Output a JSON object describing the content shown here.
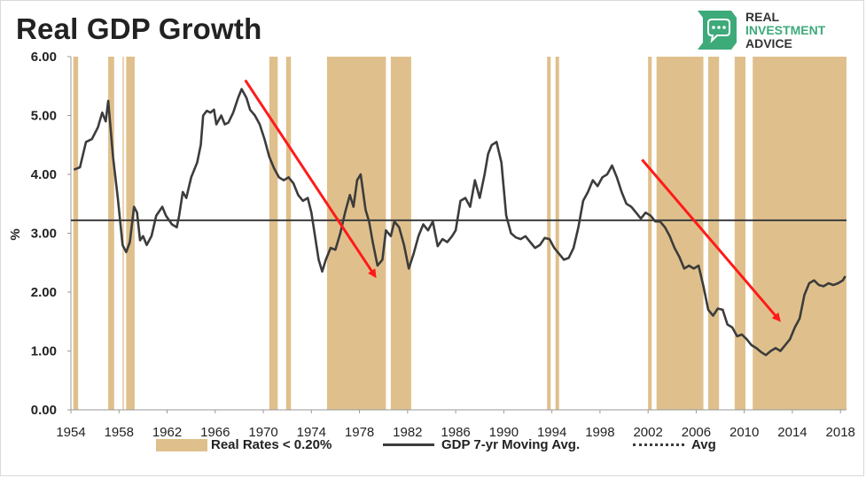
{
  "title": "Real GDP Growth",
  "brand": {
    "line1": "REAL",
    "line2": "INVESTMENT",
    "line3": "ADVICE",
    "color": "#3daa7a"
  },
  "chart_data": {
    "type": "line",
    "title": "Real GDP Growth",
    "ylabel": "%",
    "xlabel": "",
    "xlim": [
      1954.0,
      2018.5
    ],
    "ylim": [
      0,
      6
    ],
    "y_ticks": [
      "0.00",
      "1.00",
      "2.00",
      "3.00",
      "4.00",
      "5.00",
      "6.00"
    ],
    "x_ticks": [
      "1954",
      "1958",
      "1962",
      "1966",
      "1970",
      "1974",
      "1978",
      "1982",
      "1986",
      "1990",
      "1994",
      "1998",
      "2002",
      "2006",
      "2010",
      "2014",
      "2018"
    ],
    "series": [
      {
        "name": "GDP 7-yr Moving Avg.",
        "color": "#3c3c3c",
        "points": [
          [
            1954.25,
            4.08
          ],
          [
            1954.75,
            4.12
          ],
          [
            1955.25,
            4.55
          ],
          [
            1955.75,
            4.6
          ],
          [
            1956.25,
            4.8
          ],
          [
            1956.6,
            5.05
          ],
          [
            1956.9,
            4.9
          ],
          [
            1957.1,
            5.25
          ],
          [
            1957.5,
            4.3
          ],
          [
            1957.9,
            3.6
          ],
          [
            1958.3,
            2.8
          ],
          [
            1958.6,
            2.68
          ],
          [
            1958.9,
            2.85
          ],
          [
            1959.25,
            3.45
          ],
          [
            1959.5,
            3.35
          ],
          [
            1959.75,
            2.88
          ],
          [
            1960.0,
            2.95
          ],
          [
            1960.3,
            2.8
          ],
          [
            1960.7,
            2.95
          ],
          [
            1961.1,
            3.3
          ],
          [
            1961.6,
            3.45
          ],
          [
            1961.9,
            3.3
          ],
          [
            1962.4,
            3.15
          ],
          [
            1962.8,
            3.1
          ],
          [
            1963.0,
            3.3
          ],
          [
            1963.3,
            3.7
          ],
          [
            1963.6,
            3.6
          ],
          [
            1964.0,
            3.95
          ],
          [
            1964.5,
            4.2
          ],
          [
            1964.8,
            4.5
          ],
          [
            1965.0,
            5.0
          ],
          [
            1965.3,
            5.08
          ],
          [
            1965.6,
            5.05
          ],
          [
            1965.9,
            5.1
          ],
          [
            1966.1,
            4.85
          ],
          [
            1966.5,
            5.0
          ],
          [
            1966.8,
            4.85
          ],
          [
            1967.1,
            4.88
          ],
          [
            1967.5,
            5.05
          ],
          [
            1967.9,
            5.3
          ],
          [
            1968.2,
            5.45
          ],
          [
            1968.6,
            5.3
          ],
          [
            1968.9,
            5.1
          ],
          [
            1969.3,
            5.0
          ],
          [
            1969.7,
            4.85
          ],
          [
            1970.1,
            4.6
          ],
          [
            1970.5,
            4.3
          ],
          [
            1970.9,
            4.1
          ],
          [
            1971.3,
            3.95
          ],
          [
            1971.7,
            3.9
          ],
          [
            1972.1,
            3.95
          ],
          [
            1972.5,
            3.85
          ],
          [
            1972.9,
            3.65
          ],
          [
            1973.3,
            3.55
          ],
          [
            1973.7,
            3.6
          ],
          [
            1974.0,
            3.35
          ],
          [
            1974.3,
            2.95
          ],
          [
            1974.6,
            2.55
          ],
          [
            1974.9,
            2.35
          ],
          [
            1975.2,
            2.55
          ],
          [
            1975.6,
            2.75
          ],
          [
            1976.0,
            2.72
          ],
          [
            1976.4,
            3.0
          ],
          [
            1976.8,
            3.35
          ],
          [
            1977.2,
            3.65
          ],
          [
            1977.5,
            3.45
          ],
          [
            1977.8,
            3.9
          ],
          [
            1978.1,
            4.0
          ],
          [
            1978.5,
            3.4
          ],
          [
            1978.8,
            3.2
          ],
          [
            1979.1,
            2.85
          ],
          [
            1979.5,
            2.45
          ],
          [
            1979.9,
            2.55
          ],
          [
            1980.2,
            3.05
          ],
          [
            1980.6,
            2.95
          ],
          [
            1980.9,
            3.2
          ],
          [
            1981.3,
            3.1
          ],
          [
            1981.7,
            2.8
          ],
          [
            1982.1,
            2.4
          ],
          [
            1982.5,
            2.65
          ],
          [
            1982.9,
            2.95
          ],
          [
            1983.3,
            3.15
          ],
          [
            1983.7,
            3.05
          ],
          [
            1984.1,
            3.2
          ],
          [
            1984.5,
            2.78
          ],
          [
            1984.9,
            2.9
          ],
          [
            1985.3,
            2.85
          ],
          [
            1985.7,
            2.95
          ],
          [
            1986.0,
            3.05
          ],
          [
            1986.4,
            3.55
          ],
          [
            1986.8,
            3.6
          ],
          [
            1987.2,
            3.45
          ],
          [
            1987.6,
            3.9
          ],
          [
            1988.0,
            3.6
          ],
          [
            1988.4,
            4.0
          ],
          [
            1988.7,
            4.35
          ],
          [
            1989.0,
            4.5
          ],
          [
            1989.4,
            4.55
          ],
          [
            1989.8,
            4.2
          ],
          [
            1990.2,
            3.3
          ],
          [
            1990.6,
            3.0
          ],
          [
            1991.0,
            2.93
          ],
          [
            1991.4,
            2.9
          ],
          [
            1991.8,
            2.95
          ],
          [
            1992.2,
            2.85
          ],
          [
            1992.6,
            2.75
          ],
          [
            1993.0,
            2.8
          ],
          [
            1993.4,
            2.92
          ],
          [
            1993.8,
            2.9
          ],
          [
            1994.2,
            2.75
          ],
          [
            1994.6,
            2.65
          ],
          [
            1995.0,
            2.55
          ],
          [
            1995.4,
            2.58
          ],
          [
            1995.8,
            2.75
          ],
          [
            1996.2,
            3.1
          ],
          [
            1996.6,
            3.55
          ],
          [
            1997.0,
            3.7
          ],
          [
            1997.4,
            3.9
          ],
          [
            1997.8,
            3.8
          ],
          [
            1998.2,
            3.95
          ],
          [
            1998.6,
            4.0
          ],
          [
            1999.0,
            4.15
          ],
          [
            1999.4,
            3.95
          ],
          [
            1999.8,
            3.7
          ],
          [
            2000.2,
            3.5
          ],
          [
            2000.6,
            3.45
          ],
          [
            2001.0,
            3.35
          ],
          [
            2001.4,
            3.25
          ],
          [
            2001.8,
            3.35
          ],
          [
            2002.2,
            3.3
          ],
          [
            2002.6,
            3.2
          ],
          [
            2003.0,
            3.2
          ],
          [
            2003.4,
            3.1
          ],
          [
            2003.8,
            2.95
          ],
          [
            2004.2,
            2.75
          ],
          [
            2004.6,
            2.6
          ],
          [
            2005.0,
            2.4
          ],
          [
            2005.4,
            2.45
          ],
          [
            2005.8,
            2.4
          ],
          [
            2006.2,
            2.45
          ],
          [
            2006.6,
            2.1
          ],
          [
            2007.0,
            1.7
          ],
          [
            2007.4,
            1.6
          ],
          [
            2007.8,
            1.72
          ],
          [
            2008.2,
            1.7
          ],
          [
            2008.6,
            1.45
          ],
          [
            2009.0,
            1.4
          ],
          [
            2009.4,
            1.25
          ],
          [
            2009.8,
            1.28
          ],
          [
            2010.2,
            1.2
          ],
          [
            2010.6,
            1.1
          ],
          [
            2011.0,
            1.05
          ],
          [
            2011.4,
            0.98
          ],
          [
            2011.8,
            0.93
          ],
          [
            2012.2,
            1.0
          ],
          [
            2012.6,
            1.05
          ],
          [
            2013.0,
            1.0
          ],
          [
            2013.4,
            1.1
          ],
          [
            2013.8,
            1.2
          ],
          [
            2014.2,
            1.4
          ],
          [
            2014.6,
            1.55
          ],
          [
            2015.0,
            1.95
          ],
          [
            2015.4,
            2.15
          ],
          [
            2015.8,
            2.2
          ],
          [
            2016.2,
            2.12
          ],
          [
            2016.6,
            2.1
          ],
          [
            2017.0,
            2.15
          ],
          [
            2017.4,
            2.12
          ],
          [
            2017.8,
            2.15
          ],
          [
            2018.2,
            2.2
          ],
          [
            2018.4,
            2.27
          ]
        ]
      },
      {
        "name": "Avg",
        "color": "#3c3c3c",
        "value": 3.22
      },
      {
        "name": "Real Rates < 0.20%",
        "color": "#dfc08c"
      }
    ],
    "shaded_periods": [
      [
        1954.2,
        1954.6
      ],
      [
        1957.1,
        1957.6
      ],
      [
        1958.3,
        1958.4
      ],
      [
        1958.6,
        1959.3
      ],
      [
        1970.5,
        1971.2
      ],
      [
        1971.9,
        1972.3
      ],
      [
        1975.3,
        1980.2
      ],
      [
        1980.6,
        1982.3
      ],
      [
        1993.6,
        1993.9
      ],
      [
        1994.3,
        1994.6
      ],
      [
        2002.0,
        2002.3
      ],
      [
        2002.7,
        2006.6
      ],
      [
        2007.0,
        2007.9
      ],
      [
        2009.2,
        2010.1
      ],
      [
        2010.7,
        2018.5
      ]
    ],
    "annotations": [
      {
        "type": "arrow",
        "color": "#ff1a1a",
        "from": [
          1968.5,
          5.6
        ],
        "to": [
          1979.2,
          2.3
        ]
      },
      {
        "type": "arrow",
        "color": "#ff1a1a",
        "from": [
          2001.5,
          4.25
        ],
        "to": [
          2012.8,
          1.55
        ]
      }
    ],
    "grid": false,
    "legend_position": "bottom"
  }
}
